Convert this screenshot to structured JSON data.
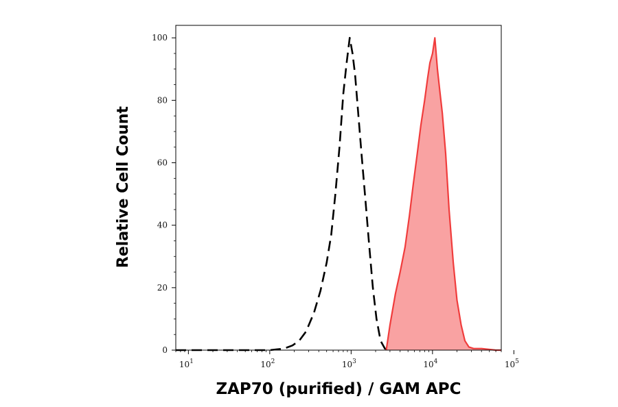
{
  "chart_data": {
    "type": "area",
    "title": "",
    "xlabel": "ZAP70 (purified) / GAM APC",
    "ylabel": "Relative Cell Count",
    "x_scale": "log",
    "xlim": [
      7,
      70000
    ],
    "ylim": [
      0,
      104
    ],
    "grid": false,
    "x_ticks": [
      {
        "value": 10,
        "base": "10",
        "exp": "1"
      },
      {
        "value": 100,
        "base": "10",
        "exp": "2"
      },
      {
        "value": 1000,
        "base": "10",
        "exp": "3"
      },
      {
        "value": 10000,
        "base": "10",
        "exp": "4"
      },
      {
        "value": 100000,
        "base": "10",
        "exp": "5"
      }
    ],
    "y_ticks": [
      0,
      20,
      40,
      60,
      80,
      100
    ],
    "series": [
      {
        "style": "dashed-outline",
        "color": "#000000",
        "x": [
          7,
          10,
          30,
          100,
          150,
          190,
          230,
          280,
          350,
          420,
          500,
          570,
          640,
          720,
          800,
          880,
          960,
          1040,
          1120,
          1230,
          1350,
          1500,
          1650,
          1850,
          2050,
          2300,
          2600,
          3000
        ],
        "values": [
          0,
          0,
          0,
          0,
          0.5,
          1.5,
          3,
          6,
          12,
          19,
          28,
          37,
          50,
          65,
          82,
          92,
          100,
          95,
          88,
          75,
          62,
          48,
          35,
          20,
          10,
          3,
          0.5,
          0
        ]
      },
      {
        "style": "filled",
        "color": "#f03c3c",
        "fill": "#f9a2a2",
        "x": [
          2700,
          3000,
          3500,
          4000,
          4600,
          5200,
          5800,
          6500,
          7200,
          8000,
          8700,
          9300,
          10000,
          10700,
          11500,
          12300,
          13200,
          14500,
          16000,
          18000,
          20000,
          22500,
          25000,
          28000,
          32000,
          40000,
          60000,
          70000
        ],
        "values": [
          0,
          8,
          18,
          25,
          33,
          43,
          53,
          63,
          72,
          80,
          87,
          92,
          95,
          100,
          90,
          83,
          76,
          63,
          45,
          28,
          16,
          8,
          3,
          1,
          0.5,
          0.5,
          0,
          0
        ]
      }
    ]
  }
}
